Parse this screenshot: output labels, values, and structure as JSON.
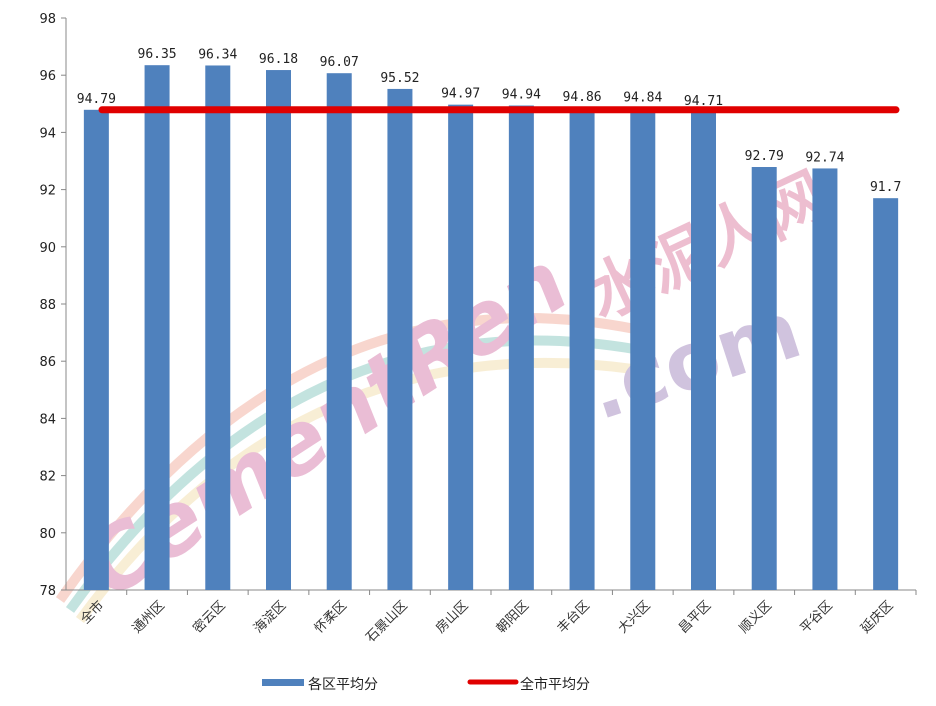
{
  "chart_data": {
    "type": "bar",
    "categories": [
      "全市",
      "通州区",
      "密云区",
      "海淀区",
      "怀柔区",
      "石景山区",
      "房山区",
      "朝阳区",
      "丰台区",
      "大兴区",
      "昌平区",
      "顺义区",
      "平谷区",
      "延庆区"
    ],
    "series": [
      {
        "name": "各区平均分",
        "values": [
          94.79,
          96.35,
          96.34,
          96.18,
          96.07,
          95.52,
          94.97,
          94.94,
          94.86,
          94.84,
          94.71,
          92.79,
          92.74,
          91.7
        ],
        "labels": [
          "94.79",
          "96.35",
          "96.34",
          "96.18",
          "96.07",
          "95.52",
          "94.97",
          "94.94",
          "94.86",
          "94.84",
          "94.71",
          "92.79",
          "92.74",
          "91.7"
        ],
        "color": "#4F81BD"
      }
    ],
    "reference_line": {
      "name": "全市平均分",
      "value": 94.79,
      "color": "#E00000"
    },
    "ylim": [
      78,
      98
    ],
    "yticks": [
      "78",
      "80",
      "82",
      "84",
      "86",
      "88",
      "90",
      "92",
      "94",
      "96",
      "98"
    ],
    "legend_position": "bottom",
    "watermark": "CementRen.com 水泥人网"
  }
}
